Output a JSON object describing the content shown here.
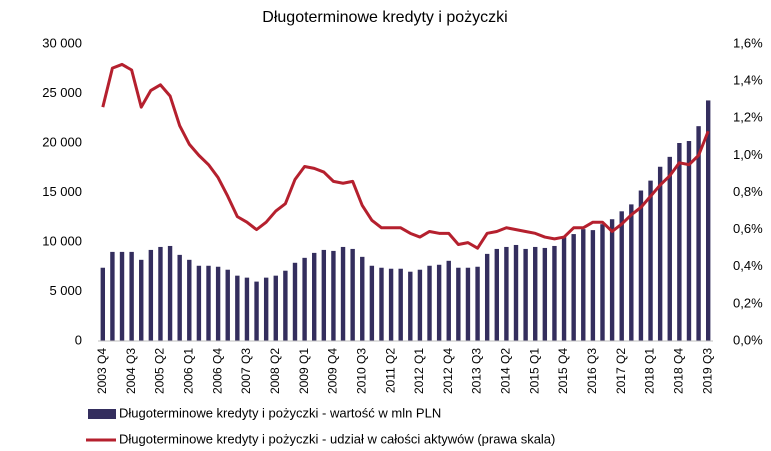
{
  "chart_data": {
    "type": "bar",
    "title": "Długoterminowe kredyty i pożyczki",
    "categories": [
      "2003 Q4",
      null,
      null,
      "2004 Q3",
      null,
      null,
      "2005 Q2",
      null,
      null,
      "2006 Q1",
      null,
      null,
      "2006 Q4",
      null,
      null,
      "2007 Q3",
      null,
      null,
      "2008 Q2",
      null,
      null,
      "2009 Q1",
      null,
      null,
      "2009 Q4",
      null,
      null,
      "2010 Q3",
      null,
      null,
      "2011 Q2",
      null,
      null,
      "2012 Q1",
      null,
      null,
      "2012 Q4",
      null,
      null,
      "2013 Q3",
      null,
      null,
      "2014 Q2",
      null,
      null,
      "2015 Q1",
      null,
      null,
      "2015 Q4",
      null,
      null,
      "2016 Q3",
      null,
      null,
      "2017 Q2",
      null,
      null,
      "2018 Q1",
      null,
      null,
      "2018 Q4",
      null,
      null,
      "2019 Q3"
    ],
    "series": [
      {
        "name": "Długoterminowe kredyty i pożyczki - wartość w mln PLN",
        "type": "bar",
        "color": "#342e5e",
        "values": [
          7400,
          9000,
          9000,
          9000,
          8200,
          9200,
          9500,
          9600,
          8700,
          8200,
          7600,
          7600,
          7500,
          7200,
          6600,
          6400,
          6000,
          6400,
          6600,
          7100,
          7900,
          8400,
          8900,
          9200,
          9100,
          9500,
          9300,
          8500,
          7600,
          7400,
          7300,
          7300,
          7000,
          7200,
          7600,
          7700,
          8100,
          7400,
          7400,
          7500,
          8800,
          9300,
          9500,
          9700,
          9300,
          9500,
          9400,
          9600,
          10500,
          10800,
          11300,
          11200,
          11800,
          12300,
          13100,
          13800,
          15200,
          16200,
          17600,
          18600,
          20000,
          20200,
          21700,
          24300
        ]
      },
      {
        "name": "Długoterminowe kredyty i pożyczki - udział w całości aktywów (prawa skala)",
        "type": "line",
        "axis": "y2",
        "color": "#b5202e",
        "values": [
          1.26,
          1.47,
          1.49,
          1.46,
          1.26,
          1.35,
          1.38,
          1.32,
          1.16,
          1.06,
          1.0,
          0.95,
          0.88,
          0.78,
          0.67,
          0.64,
          0.6,
          0.64,
          0.7,
          0.74,
          0.87,
          0.94,
          0.93,
          0.91,
          0.86,
          0.85,
          0.86,
          0.73,
          0.65,
          0.61,
          0.61,
          0.61,
          0.58,
          0.56,
          0.59,
          0.58,
          0.58,
          0.52,
          0.53,
          0.5,
          0.58,
          0.59,
          0.61,
          0.6,
          0.59,
          0.58,
          0.56,
          0.55,
          0.56,
          0.61,
          0.61,
          0.64,
          0.64,
          0.59,
          0.63,
          0.68,
          0.72,
          0.78,
          0.84,
          0.89,
          0.96,
          0.95,
          1.0,
          1.13
        ]
      }
    ],
    "ylim": [
      0,
      30000
    ],
    "yticks": [
      0,
      {
        "value": 5000,
        "label": "5 000"
      },
      {
        "value": 10000,
        "label": "10 000"
      },
      {
        "value": 15000,
        "label": "15 000"
      },
      {
        "value": 20000,
        "label": "20 000"
      },
      {
        "value": 25000,
        "label": "25 000"
      },
      {
        "value": 30000,
        "label": "30 000"
      }
    ],
    "y2lim": [
      0,
      1.6
    ],
    "y2ticks": [
      {
        "value": 0,
        "label": "0,0%"
      },
      {
        "value": 0.2,
        "label": "0,2%"
      },
      {
        "value": 0.4,
        "label": "0,4%"
      },
      {
        "value": 0.6,
        "label": "0,6%"
      },
      {
        "value": 0.8,
        "label": "0,8%"
      },
      {
        "value": 1.0,
        "label": "1,0%"
      },
      {
        "value": 1.2,
        "label": "1,2%"
      },
      {
        "value": 1.4,
        "label": "1,4%"
      },
      {
        "value": 1.6,
        "label": "1,6%"
      }
    ],
    "legend": "bottom"
  }
}
